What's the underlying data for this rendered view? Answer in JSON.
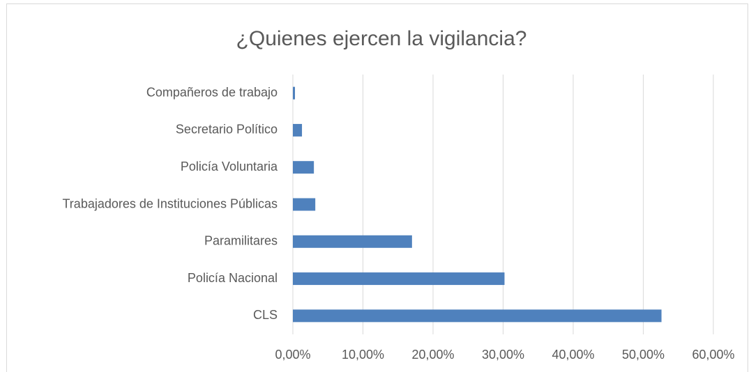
{
  "chart_data": {
    "type": "bar",
    "orientation": "horizontal",
    "title": "¿Quienes ejercen la vigilancia?",
    "categories": [
      "Compañeros de trabajo",
      "Secretario Político",
      "Policía Voluntaria",
      "Trabajadores de Instituciones Públicas",
      "Paramilitares",
      "Policía Nacional",
      "CLS"
    ],
    "values": [
      0.3,
      1.3,
      3.0,
      3.2,
      17.0,
      30.2,
      52.6
    ],
    "color": "#4f81bd",
    "xlim": [
      0,
      60
    ],
    "xticks": [
      {
        "value": 0,
        "label": "0,00%"
      },
      {
        "value": 10,
        "label": "10,00%"
      },
      {
        "value": 20,
        "label": "20,00%"
      },
      {
        "value": 30,
        "label": "30,00%"
      },
      {
        "value": 40,
        "label": "40,00%"
      },
      {
        "value": 50,
        "label": "50,00%"
      },
      {
        "value": 60,
        "label": "60,00%"
      }
    ],
    "grid": true
  }
}
